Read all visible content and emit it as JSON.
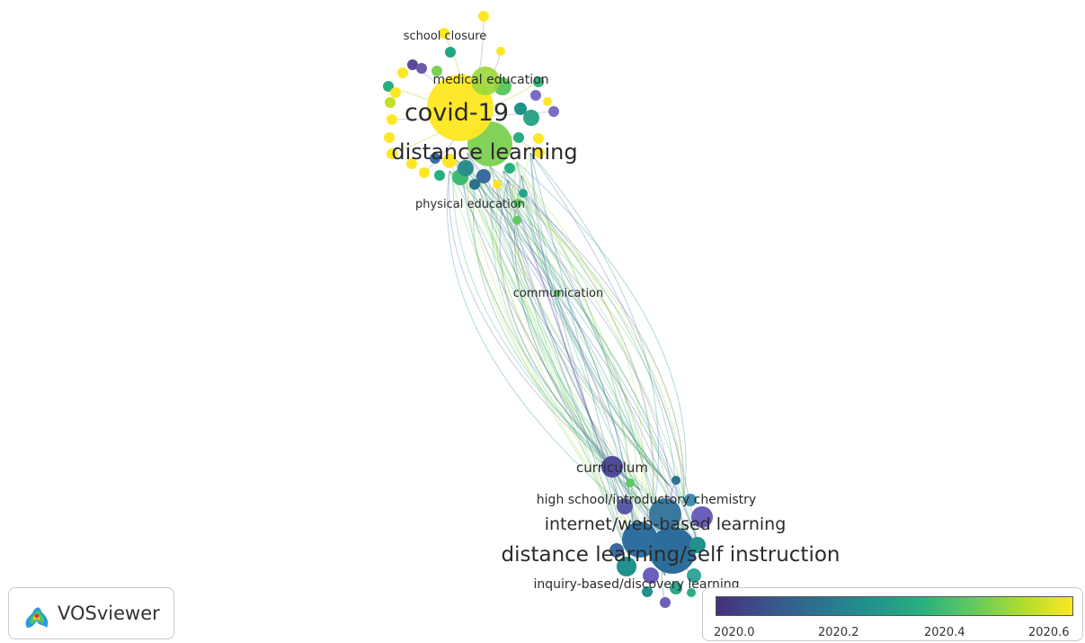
{
  "colors": {
    "scale_low": "#46307e",
    "scale_mid": "#21918c",
    "scale_high": "#fde725"
  },
  "terms": [
    {
      "id": "school-closure",
      "label": "school closure",
      "year": 2020.6
    },
    {
      "id": "medical-education",
      "label": "medical education",
      "year": 2020.3
    },
    {
      "id": "covid-19",
      "label": "covid-19",
      "year": 2020.6
    },
    {
      "id": "distance-learning",
      "label": "distance learning",
      "year": 2020.45
    },
    {
      "id": "physical-education",
      "label": "physical education",
      "year": 2020.5
    },
    {
      "id": "communication",
      "label": "communication",
      "year": 2020.3
    },
    {
      "id": "curriculum",
      "label": "curriculum",
      "year": 2020.0
    },
    {
      "id": "high-school-introductory-chemistry",
      "label": "high school/introductory chemistry",
      "year": 2020.1
    },
    {
      "id": "internet-web-based-learning",
      "label": "internet/web-based learning",
      "year": 2020.15
    },
    {
      "id": "distance-learning-self-instruction",
      "label": "distance learning/self instruction",
      "year": 2020.15
    },
    {
      "id": "inquiry-based-discovery-learning",
      "label": "inquiry-based/discovery learning",
      "year": 2020.1
    }
  ],
  "logo": {
    "text": "VOSviewer",
    "icon": "vosviewer-logo-icon"
  },
  "legend": {
    "ticks": [
      "2020.0",
      "2020.2",
      "2020.4",
      "2020.6"
    ],
    "range": [
      2019.95,
      2020.65
    ]
  }
}
